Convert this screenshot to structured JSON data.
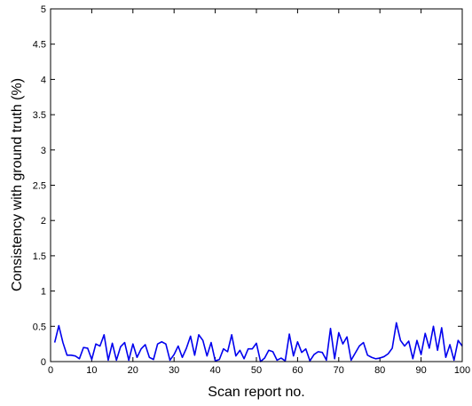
{
  "chart_data": {
    "type": "line",
    "title": "",
    "xlabel": "Scan report no.",
    "ylabel": "Consistency with ground truth (%)",
    "xlim": [
      0,
      100
    ],
    "ylim": [
      0,
      5
    ],
    "xticks": [
      0,
      10,
      20,
      30,
      40,
      50,
      60,
      70,
      80,
      90,
      100
    ],
    "yticks": [
      0,
      0.5,
      1,
      1.5,
      2,
      2.5,
      3,
      3.5,
      4,
      4.5,
      5
    ],
    "xtick_labels": [
      "0",
      "10",
      "20",
      "30",
      "40",
      "50",
      "60",
      "70",
      "80",
      "90",
      "100"
    ],
    "ytick_labels": [
      "0",
      "0.5",
      "1",
      "1.5",
      "2",
      "2.5",
      "3",
      "3.5",
      "4",
      "4.5",
      "5"
    ],
    "grid": false,
    "line_color": "#0000ee",
    "series": [
      {
        "x": [
          1,
          2,
          3,
          4,
          5,
          6,
          7,
          8,
          9,
          10,
          11,
          12,
          13,
          14,
          15,
          16,
          17,
          18,
          19,
          20,
          21,
          22,
          23,
          24,
          25,
          26,
          27,
          28,
          29,
          30,
          31,
          32,
          33,
          34,
          35,
          36,
          37,
          38,
          39,
          40,
          41,
          42,
          43,
          44,
          45,
          46,
          47,
          48,
          49,
          50,
          51,
          52,
          53,
          54,
          55,
          56,
          57,
          58,
          59,
          60,
          61,
          62,
          63,
          64,
          65,
          66,
          67,
          68,
          69,
          70,
          71,
          72,
          73,
          74,
          75,
          76,
          77,
          78,
          79,
          80,
          81,
          82,
          83,
          84,
          85,
          86,
          87,
          88,
          89,
          90,
          91,
          92,
          93,
          94,
          95,
          96,
          97,
          98,
          99,
          100
        ],
        "values": [
          0.27,
          0.51,
          0.27,
          0.09,
          0.09,
          0.08,
          0.04,
          0.2,
          0.19,
          0.03,
          0.25,
          0.22,
          0.38,
          0.02,
          0.26,
          0.02,
          0.21,
          0.27,
          0.02,
          0.25,
          0.06,
          0.18,
          0.24,
          0.06,
          0.03,
          0.25,
          0.28,
          0.25,
          0.02,
          0.1,
          0.22,
          0.06,
          0.19,
          0.36,
          0.09,
          0.38,
          0.3,
          0.08,
          0.27,
          0.01,
          0.03,
          0.18,
          0.14,
          0.38,
          0.08,
          0.16,
          0.04,
          0.18,
          0.18,
          0.26,
          0.0,
          0.05,
          0.16,
          0.14,
          0.02,
          0.05,
          0.01,
          0.39,
          0.08,
          0.28,
          0.13,
          0.18,
          0.01,
          0.1,
          0.14,
          0.13,
          0.02,
          0.47,
          0.04,
          0.41,
          0.25,
          0.35,
          0.02,
          0.12,
          0.22,
          0.27,
          0.09,
          0.06,
          0.04,
          0.05,
          0.07,
          0.11,
          0.19,
          0.55,
          0.3,
          0.22,
          0.29,
          0.04,
          0.3,
          0.1,
          0.4,
          0.19,
          0.5,
          0.16,
          0.48,
          0.06,
          0.24,
          0.02,
          0.3,
          0.22
        ]
      }
    ]
  }
}
